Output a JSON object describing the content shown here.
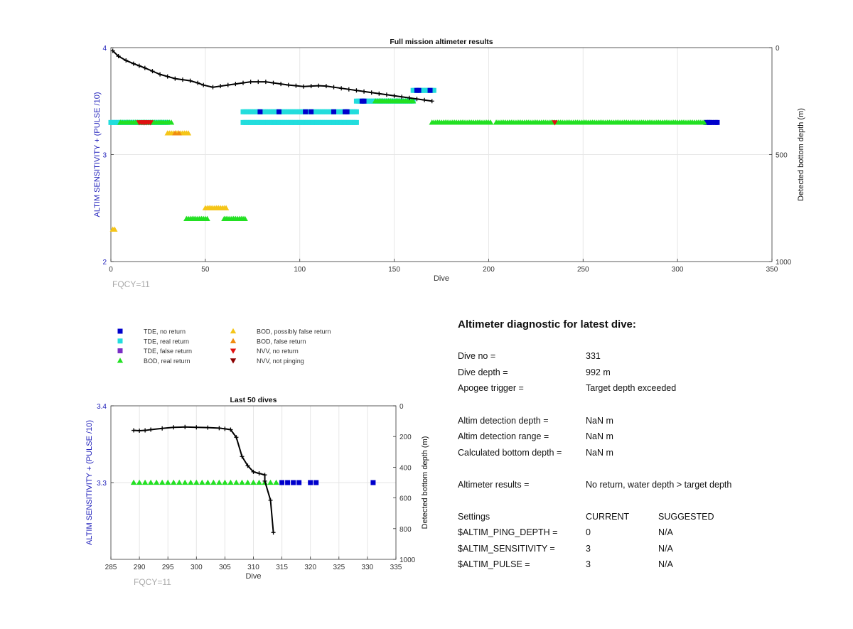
{
  "colors": {
    "tde_no_return": "#0000cc",
    "tde_real_return": "#22dddd",
    "tde_false_return": "#7a2ec6",
    "bod_real_return": "#22e022",
    "bod_possibly_false": "#f5c518",
    "bod_false_return": "#f08c10",
    "nvv_no_return": "#e01010",
    "nvv_not_pinging": "#8b0000",
    "left_axis_label": "#2222bb",
    "freq_label": "#aaaaaa"
  },
  "legend": {
    "items": [
      {
        "label": "TDE, no return",
        "marker": "square",
        "color_key": "tde_no_return"
      },
      {
        "label": "TDE, real return",
        "marker": "square",
        "color_key": "tde_real_return"
      },
      {
        "label": "TDE, false return",
        "marker": "square",
        "color_key": "tde_false_return"
      },
      {
        "label": "BOD, real return",
        "marker": "triangle-up",
        "color_key": "bod_real_return"
      },
      {
        "label": "BOD, possibly false return",
        "marker": "triangle-up",
        "color_key": "bod_possibly_false"
      },
      {
        "label": "BOD, false return",
        "marker": "triangle-up",
        "color_key": "bod_false_return"
      },
      {
        "label": "NVV, no return",
        "marker": "triangle-down",
        "color_key": "nvv_no_return"
      },
      {
        "label": "NVV, not pinging",
        "marker": "triangle-down",
        "color_key": "nvv_not_pinging"
      }
    ]
  },
  "chart_data": [
    {
      "type": "scatter",
      "title": "Full mission altimeter results",
      "xlabel": "Dive",
      "ylabel": "ALTIM SENSITIVITY + (PULSE /10)",
      "y2label": "Detected bottom depth (m)",
      "xlim": [
        0,
        350
      ],
      "ylim": [
        2,
        4
      ],
      "y2lim": [
        0,
        1000
      ],
      "y2_reversed": true,
      "xticks": [
        0,
        50,
        100,
        150,
        200,
        250,
        300,
        350
      ],
      "yticks": [
        2,
        3,
        4
      ],
      "y2ticks": [
        0,
        500,
        1000
      ],
      "grid": true,
      "footnote": "FQCY=11",
      "series": [
        {
          "name": "TDE, real return",
          "color_key": "tde_real_return",
          "marker": "square",
          "y": 3.3,
          "x_ranges": [
            [
              0,
              30
            ],
            [
              70,
              130
            ]
          ]
        },
        {
          "name": "TDE, real return",
          "color_key": "tde_real_return",
          "marker": "square",
          "y": 3.4,
          "x_ranges": [
            [
              70,
              130
            ]
          ]
        },
        {
          "name": "TDE, real return",
          "color_key": "tde_real_return",
          "marker": "square",
          "y": 3.5,
          "x_ranges": [
            [
              130,
              160
            ]
          ]
        },
        {
          "name": "TDE, real return",
          "color_key": "tde_real_return",
          "marker": "square",
          "y": 3.6,
          "x_ranges": [
            [
              160,
              171
            ]
          ]
        },
        {
          "name": "TDE, no return",
          "color_key": "tde_no_return",
          "marker": "square",
          "y": 3.4,
          "x_points": [
            79,
            89,
            103,
            106,
            118,
            124,
            125
          ]
        },
        {
          "name": "TDE, no return",
          "color_key": "tde_no_return",
          "marker": "square",
          "y": 3.5,
          "x_points": [
            133,
            134
          ]
        },
        {
          "name": "TDE, no return",
          "color_key": "tde_no_return",
          "marker": "square",
          "y": 3.6,
          "x_points": [
            162,
            163,
            169
          ]
        },
        {
          "name": "TDE, no return",
          "color_key": "tde_no_return",
          "marker": "square",
          "y": 3.3,
          "x_points": [
            315,
            316,
            317,
            318,
            320,
            321
          ]
        },
        {
          "name": "BOD, real return",
          "color_key": "bod_real_return",
          "marker": "triangle-up",
          "y": 3.3,
          "x_ranges": [
            [
              5,
              32
            ],
            [
              170,
              201
            ],
            [
              204,
              314
            ]
          ]
        },
        {
          "name": "BOD, real return",
          "color_key": "bod_real_return",
          "marker": "triangle-up",
          "y": 3.5,
          "x_ranges": [
            [
              140,
              160
            ]
          ]
        },
        {
          "name": "BOD, real return",
          "color_key": "bod_real_return",
          "marker": "triangle-up",
          "y": 2.4,
          "x_ranges": [
            [
              40,
              51
            ],
            [
              60,
              71
            ]
          ]
        },
        {
          "name": "BOD, possibly false return",
          "color_key": "bod_possibly_false",
          "marker": "triangle-up",
          "y": 3.2,
          "x_ranges": [
            [
              30,
              41
            ]
          ]
        },
        {
          "name": "BOD, possibly false return",
          "color_key": "bod_possibly_false",
          "marker": "triangle-up",
          "y": 2.5,
          "x_ranges": [
            [
              50,
              61
            ]
          ]
        },
        {
          "name": "BOD, possibly false return",
          "color_key": "bod_possibly_false",
          "marker": "triangle-up",
          "y": 2.3,
          "x_points": [
            1,
            2
          ]
        },
        {
          "name": "BOD, false return",
          "color_key": "bod_false_return",
          "marker": "triangle-up",
          "y": 3.2,
          "x_points": [
            34,
            36
          ]
        },
        {
          "name": "NVV, no return",
          "color_key": "nvv_no_return",
          "marker": "triangle-down",
          "y": 3.3,
          "x_ranges": [
            [
              15,
              21
            ]
          ]
        },
        {
          "name": "NVV, no return",
          "color_key": "nvv_no_return",
          "marker": "triangle-down",
          "y": 3.3,
          "x_points": [
            235
          ]
        },
        {
          "name": "Detected bottom depth",
          "axis": "right",
          "style": "line-plus",
          "points": [
            [
              1,
              15
            ],
            [
              4,
              40
            ],
            [
              8,
              60
            ],
            [
              12,
              75
            ],
            [
              15,
              85
            ],
            [
              18,
              95
            ],
            [
              22,
              110
            ],
            [
              26,
              125
            ],
            [
              30,
              135
            ],
            [
              34,
              145
            ],
            [
              38,
              150
            ],
            [
              42,
              155
            ],
            [
              46,
              165
            ],
            [
              49,
              175
            ],
            [
              54,
              185
            ],
            [
              58,
              180
            ],
            [
              62,
              175
            ],
            [
              66,
              170
            ],
            [
              70,
              165
            ],
            [
              74,
              160
            ],
            [
              78,
              160
            ],
            [
              82,
              160
            ],
            [
              86,
              165
            ],
            [
              90,
              170
            ],
            [
              94,
              175
            ],
            [
              98,
              178
            ],
            [
              102,
              182
            ],
            [
              106,
              180
            ],
            [
              110,
              178
            ],
            [
              114,
              180
            ],
            [
              118,
              185
            ],
            [
              122,
              190
            ],
            [
              126,
              195
            ],
            [
              130,
              200
            ],
            [
              134,
              205
            ],
            [
              138,
              210
            ],
            [
              142,
              215
            ],
            [
              146,
              220
            ],
            [
              150,
              225
            ],
            [
              154,
              230
            ],
            [
              158,
              235
            ],
            [
              162,
              240
            ],
            [
              166,
              245
            ],
            [
              170,
              250
            ]
          ]
        }
      ]
    },
    {
      "type": "scatter",
      "title": "Last 50 dives",
      "xlabel": "Dive",
      "ylabel": "ALTIM SENSITIVITY + (PULSE /10)",
      "y2label": "Detected bottom depth (m)",
      "xlim": [
        285,
        335
      ],
      "ylim": [
        3.2,
        3.4
      ],
      "y2lim": [
        0,
        1000
      ],
      "y2_reversed": true,
      "xticks": [
        285,
        290,
        295,
        300,
        305,
        310,
        315,
        320,
        325,
        330,
        335
      ],
      "yticks": [
        3.3,
        3.4
      ],
      "y2ticks": [
        0,
        200,
        400,
        600,
        800,
        1000
      ],
      "grid": true,
      "footnote": "FQCY=11",
      "series": [
        {
          "name": "BOD, real return",
          "color_key": "bod_real_return",
          "marker": "triangle-up",
          "y": 3.3,
          "x_ranges": [
            [
              289,
              314
            ]
          ]
        },
        {
          "name": "TDE, no return",
          "color_key": "tde_no_return",
          "marker": "square",
          "y": 3.3,
          "x_points": [
            315,
            316,
            317,
            318,
            320,
            321,
            331
          ]
        },
        {
          "name": "Detected bottom depth",
          "axis": "right",
          "style": "line-plus",
          "points": [
            [
              289,
              160
            ],
            [
              290,
              162
            ],
            [
              291,
              160
            ],
            [
              292,
              155
            ],
            [
              294,
              147
            ],
            [
              296,
              140
            ],
            [
              298,
              138
            ],
            [
              300,
              140
            ],
            [
              302,
              142
            ],
            [
              304,
              145
            ],
            [
              305,
              150
            ],
            [
              306,
              155
            ],
            [
              307,
              205
            ],
            [
              308,
              330
            ],
            [
              309,
              390
            ],
            [
              310,
              430
            ],
            [
              311,
              440
            ],
            [
              312,
              450
            ],
            [
              312,
              490
            ],
            [
              313,
              615
            ],
            [
              313.5,
              825
            ]
          ]
        }
      ]
    }
  ],
  "diagnostic": {
    "title": "Altimeter diagnostic for latest dive:",
    "rows": [
      {
        "label": "Dive no =",
        "value": "331"
      },
      {
        "label": "Dive depth =",
        "value": "992 m"
      },
      {
        "label": "Apogee trigger =",
        "value": "Target depth exceeded"
      },
      {
        "label": "Altim detection depth =",
        "value": "NaN m"
      },
      {
        "label": "Altim detection range =",
        "value": "NaN m"
      },
      {
        "label": "Calculated bottom depth =",
        "value": "NaN m"
      },
      {
        "label": "Altimeter results =",
        "value": "No return, water depth > target depth"
      }
    ],
    "settings_header": {
      "label": "Settings",
      "current": "CURRENT",
      "suggested": "SUGGESTED"
    },
    "settings": [
      {
        "label": "$ALTIM_PING_DEPTH =",
        "current": "0",
        "suggested": "N/A"
      },
      {
        "label": "$ALTIM_SENSITIVITY =",
        "current": "3",
        "suggested": "N/A"
      },
      {
        "label": "$ALTIM_PULSE =",
        "current": "3",
        "suggested": "N/A"
      }
    ]
  }
}
